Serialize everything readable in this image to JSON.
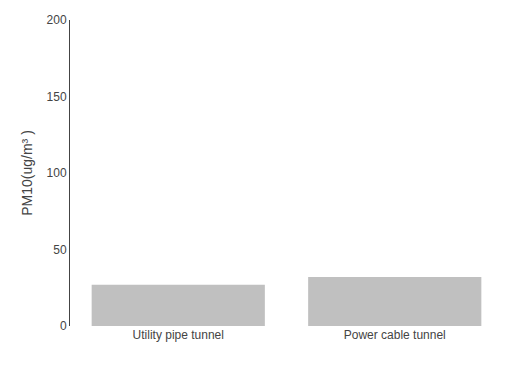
{
  "chart_data": {
    "type": "bar",
    "categories": [
      "Utility pipe tunnel",
      "Power cable tunnel"
    ],
    "values": [
      27,
      32
    ],
    "color": "#c0c0c0",
    "ylabel": "PM10(ug/m³ )",
    "ylim": [
      0,
      200
    ],
    "yticks": [
      0,
      50,
      100,
      150,
      200
    ],
    "grid": false
  }
}
